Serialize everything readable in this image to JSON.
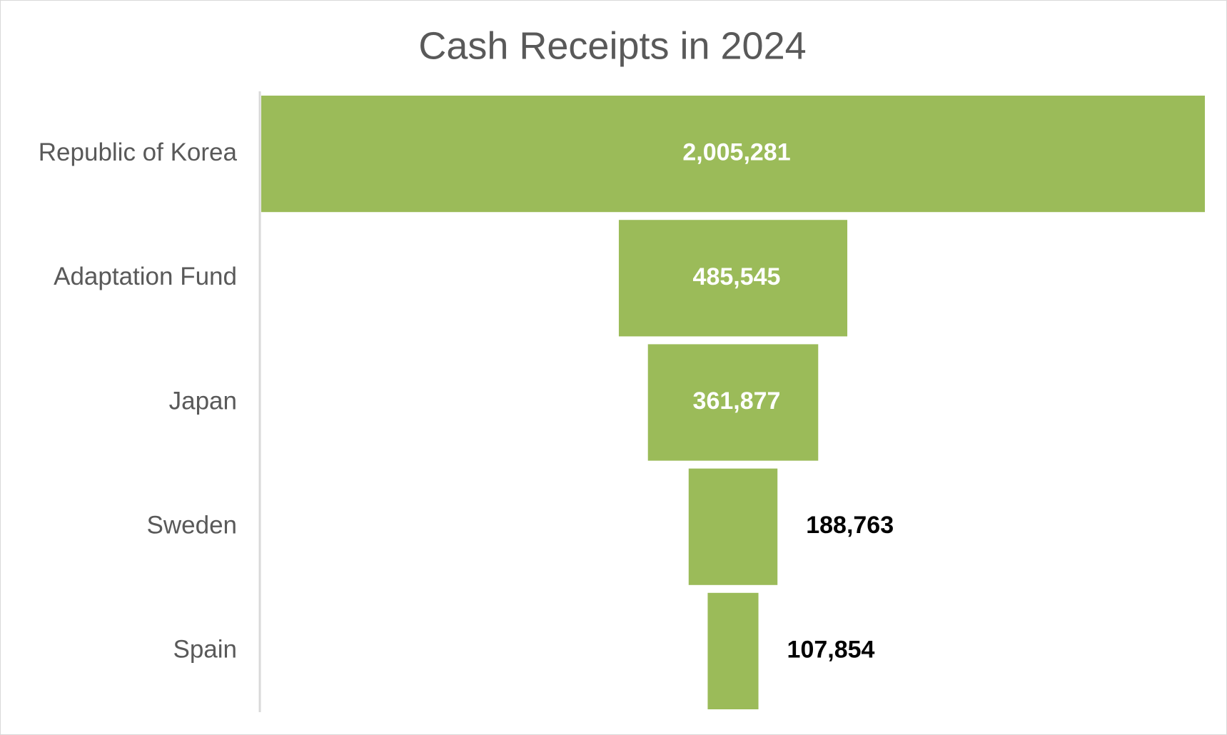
{
  "chart_data": {
    "type": "funnel",
    "title": "Cash Receipts in 2024",
    "categories": [
      "Republic of Korea",
      "Adaptation Fund",
      "Japan",
      "Sweden",
      "Spain"
    ],
    "values": [
      2005281,
      485545,
      361877,
      188763,
      107854
    ],
    "value_labels": [
      "2,005,281",
      "485,545",
      "361,877",
      "188,763",
      "107,854"
    ],
    "color": "#9bbb59"
  }
}
